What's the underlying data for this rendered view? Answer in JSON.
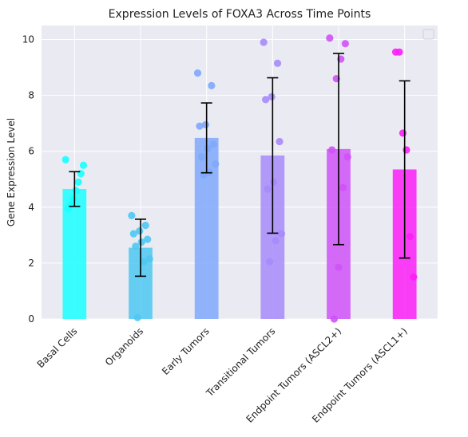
{
  "chart_data": {
    "type": "bar",
    "title": "Expression Levels of FOXA3 Across Time Points",
    "xlabel": "",
    "ylabel": "Gene Expression Level",
    "ylim": [
      0,
      10.5
    ],
    "yticks": [
      0,
      2,
      4,
      6,
      8,
      10
    ],
    "grid": true,
    "legend": "top-right (empty)",
    "categories": [
      "Basal Cells",
      "Organoids",
      "Early Tumors",
      "Transitional Tumors",
      "Endpoint Tumors (ASCL2+)",
      "Endpoint Tumors (ASCL1+)"
    ],
    "values": [
      4.65,
      2.55,
      6.48,
      5.85,
      6.08,
      5.35
    ],
    "errors": [
      0.62,
      1.02,
      1.25,
      2.78,
      3.42,
      3.17
    ],
    "colors": [
      "#19ffff",
      "#4fc8f2",
      "#7fa8fb",
      "#a78bfa",
      "#cf52f7",
      "#fb1ff7"
    ],
    "points": [
      [
        5.7,
        5.5,
        5.2,
        4.9,
        4.6,
        4.3,
        4.1,
        3.95
      ],
      [
        3.7,
        3.35,
        3.15,
        3.05,
        2.85,
        2.75,
        2.6,
        2.15,
        2.05,
        0.05
      ],
      [
        8.8,
        8.35,
        6.95,
        6.9,
        6.25,
        6.1,
        5.8,
        5.55,
        5.25,
        5.15
      ],
      [
        9.9,
        9.15,
        7.95,
        7.85,
        6.35,
        4.9,
        4.65,
        3.05,
        2.8,
        2.05
      ],
      [
        10.05,
        9.85,
        9.3,
        8.6,
        6.05,
        5.8,
        4.7,
        1.85,
        0.0
      ],
      [
        9.55,
        9.55,
        6.65,
        6.05,
        2.95,
        1.5
      ]
    ]
  }
}
